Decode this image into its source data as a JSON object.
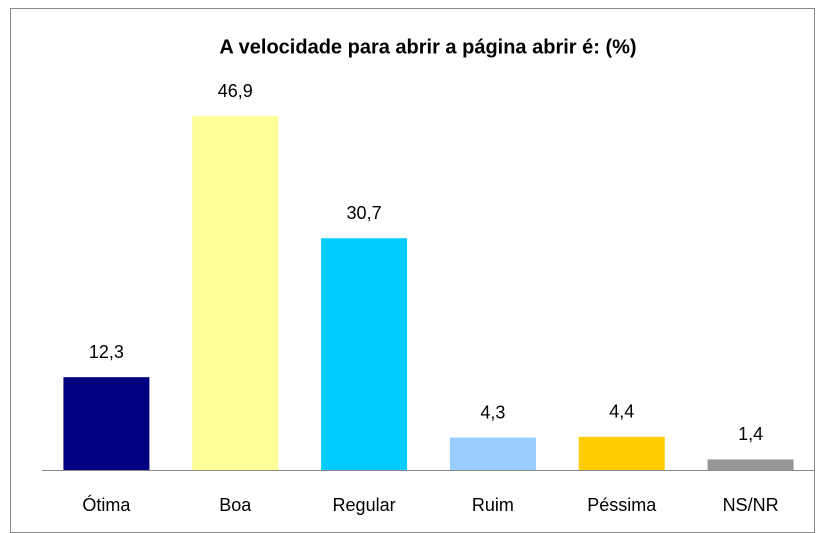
{
  "chart_data": {
    "type": "bar",
    "title": "A velocidade para abrir a página abrir é: (%)",
    "categories": [
      "Ótima",
      "Boa",
      "Regular",
      "Ruim",
      "Péssima",
      "NS/NR"
    ],
    "values": [
      12.3,
      46.9,
      30.7,
      4.3,
      4.4,
      1.4
    ],
    "value_labels": [
      "12,3",
      "46,9",
      "30,7",
      "4,3",
      "4,4",
      "1,4"
    ],
    "colors": [
      "#000080",
      "#ffff99",
      "#00ccff",
      "#99ccff",
      "#ffcc00",
      "#969696"
    ]
  }
}
